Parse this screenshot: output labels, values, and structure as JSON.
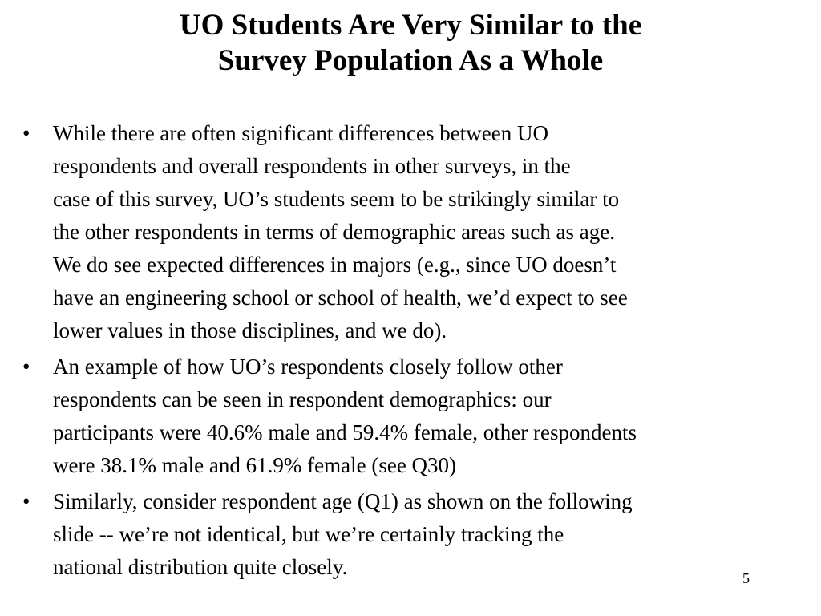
{
  "slide": {
    "title_lines": [
      "UO Students Are Very Similar to the",
      "Survey Population As a Whole"
    ],
    "bullet_symbol": "•",
    "bullets": [
      {
        "lines": [
          "While there are often significant differences between UO",
          "respondents and overall respondents in other surveys, in the",
          "case of this survey, UO’s students seem to be strikingly similar to",
          "the other respondents in terms of demographic areas such as age.",
          "We do see expected differences in majors (e.g., since UO doesn’t",
          "have an engineering school or school of health, we’d expect to see",
          "lower values in those disciplines, and we do)."
        ]
      },
      {
        "lines": [
          "An example of how UO’s respondents closely follow other",
          "respondents can be seen in respondent demographics: our",
          "participants were 40.6% male and 59.4% female, other respondents",
          "were 38.1% male and 61.9% female (see Q30)"
        ]
      },
      {
        "lines": [
          "Similarly, consider respondent age (Q1) as shown on the following",
          "slide -- we’re not identical, but we’re certainly tracking the",
          "national distribution quite closely."
        ]
      }
    ],
    "page_number": "5"
  }
}
